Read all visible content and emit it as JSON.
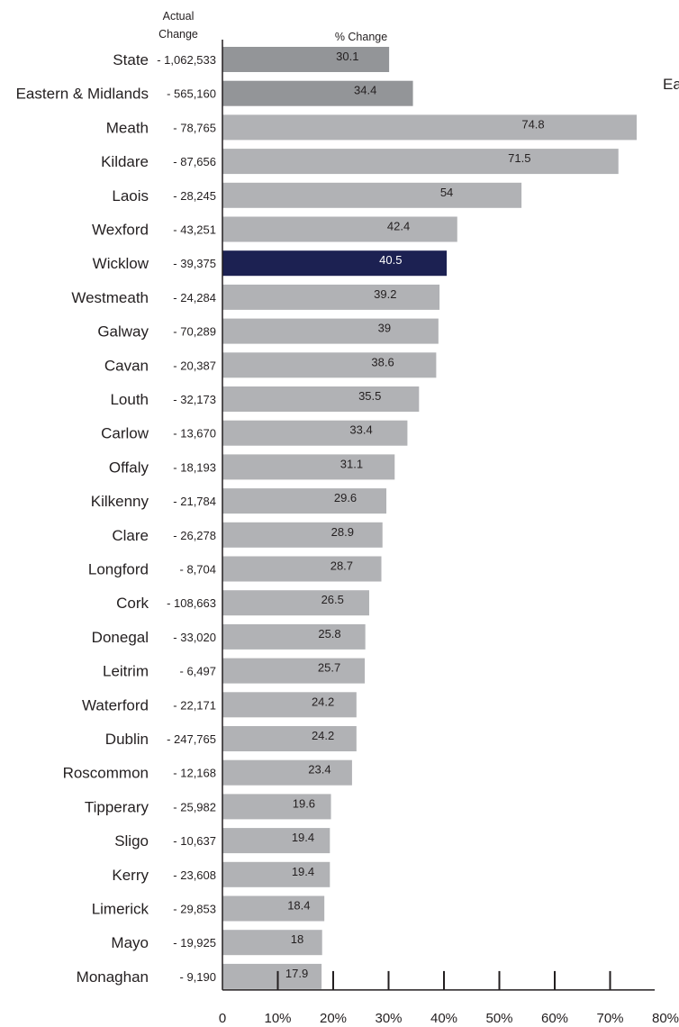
{
  "chart_data": {
    "type": "bar",
    "orientation": "horizontal",
    "header_actual": [
      "Actual",
      "Change"
    ],
    "header_pct": "% Change",
    "side_label": "Ea",
    "categories": [
      "State",
      "Eastern & Midlands",
      "Meath",
      "Kildare",
      "Laois",
      "Wexford",
      "Wicklow",
      "Westmeath",
      "Galway",
      "Cavan",
      "Louth",
      "Carlow",
      "Offaly",
      "Kilkenny",
      "Clare",
      "Longford",
      "Cork",
      "Donegal",
      "Leitrim",
      "Waterford",
      "Dublin",
      "Roscommon",
      "Tipperary",
      "Sligo",
      "Kerry",
      "Limerick",
      "Mayo",
      "Monaghan"
    ],
    "actual_change": [
      "- 1,062,533",
      "- 565,160",
      "- 78,765",
      "- 87,656",
      "- 28,245",
      "- 43,251",
      "- 39,375",
      "- 24,284",
      "- 70,289",
      "- 20,387",
      "- 32,173",
      "- 13,670",
      "- 18,193",
      "- 21,784",
      "- 26,278",
      "- 8,704",
      "- 108,663",
      "- 33,020",
      "- 6,497",
      "- 22,171",
      "- 247,765",
      "- 12,168",
      "- 25,982",
      "- 10,637",
      "- 23,608",
      "- 29,853",
      "- 19,925",
      "- 9,190"
    ],
    "values": [
      30.1,
      34.4,
      74.8,
      71.5,
      54,
      42.4,
      40.5,
      39.2,
      39,
      38.6,
      35.5,
      33.4,
      31.1,
      29.6,
      28.9,
      28.7,
      26.5,
      25.8,
      25.7,
      24.2,
      24.2,
      23.4,
      19.6,
      19.4,
      19.4,
      18.4,
      18,
      17.9
    ],
    "value_labels": [
      "30.1",
      "34.4",
      "74.8",
      "71.5",
      "54",
      "42.4",
      "40.5",
      "39.2",
      "39",
      "38.6",
      "35.5",
      "33.4",
      "31.1",
      "29.6",
      "28.9",
      "28.7",
      "26.5",
      "25.8",
      "25.7",
      "24.2",
      "24.2",
      "23.4",
      "19.6",
      "19.4",
      "19.4",
      "18.4",
      "18",
      "17.9"
    ],
    "bar_colors": [
      "#939598",
      "#939598",
      "#b1b2b5",
      "#b1b2b5",
      "#b1b2b5",
      "#b1b2b5",
      "#1c2152",
      "#b1b2b5",
      "#b1b2b5",
      "#b1b2b5",
      "#b1b2b5",
      "#b1b2b5",
      "#b1b2b5",
      "#b1b2b5",
      "#b1b2b5",
      "#b1b2b5",
      "#b1b2b5",
      "#b1b2b5",
      "#b1b2b5",
      "#b1b2b5",
      "#b1b2b5",
      "#b1b2b5",
      "#b1b2b5",
      "#b1b2b5",
      "#b1b2b5",
      "#b1b2b5",
      "#b1b2b5",
      "#b1b2b5"
    ],
    "xlim": [
      0,
      80
    ],
    "x_ticks": [
      0,
      10,
      20,
      30,
      40,
      50,
      60,
      70,
      80
    ],
    "x_tick_labels": [
      "0",
      "10%",
      "20%",
      "30%",
      "40%",
      "50%",
      "60%",
      "70%",
      "80%"
    ],
    "grid": false
  }
}
